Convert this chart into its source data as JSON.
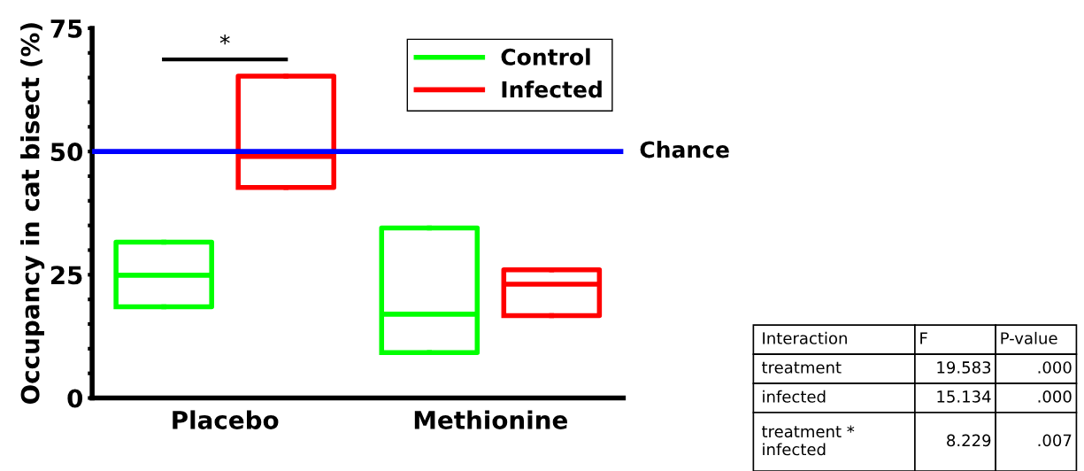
{
  "chart_data": {
    "type": "box",
    "ylabel": "Occupancy in cat bisect (%)",
    "categories": [
      "Placebo",
      "Methionine"
    ],
    "series": [
      {
        "name": "Control",
        "color": "#00ff00",
        "boxes": [
          {
            "low": 18.5,
            "q1": 18.5,
            "median": 24.9,
            "q3": 31.6,
            "high": 31.6
          },
          {
            "low": 9.2,
            "q1": 9.2,
            "median": 17.0,
            "q3": 34.5,
            "high": 34.5
          }
        ]
      },
      {
        "name": "Infected",
        "color": "#ff0000",
        "boxes": [
          {
            "low": 42.7,
            "q1": 42.7,
            "median": 49.0,
            "q3": 65.3,
            "high": 65.3
          },
          {
            "low": 16.7,
            "q1": 16.7,
            "median": 23.1,
            "q3": 26.0,
            "high": 26.0
          }
        ]
      }
    ],
    "ylim": [
      0,
      75
    ],
    "yticks": [
      0,
      {
        "value": 5,
        "label": null
      },
      {
        "value": 10,
        "label": null
      },
      {
        "value": 15,
        "label": null
      },
      {
        "value": 20,
        "label": null
      },
      25,
      {
        "value": 30,
        "label": null
      },
      {
        "value": 35,
        "label": null
      },
      {
        "value": 40,
        "label": null
      },
      {
        "value": 45,
        "label": null
      },
      50,
      {
        "value": 55,
        "label": null
      },
      {
        "value": 60,
        "label": null
      },
      {
        "value": 65,
        "label": null
      },
      {
        "value": 70,
        "label": null
      },
      75
    ],
    "ref_lines": [
      {
        "axis": "y",
        "value": 50,
        "label": "Chance",
        "color": "#0000ff"
      }
    ],
    "annotations": [
      "*",
      "Interaction",
      "F",
      "P-value",
      "treatment",
      "19.583",
      ".000",
      "infected",
      "15.134",
      ".000",
      "treatment * infected",
      "8.229",
      ".007"
    ],
    "legend": "top right",
    "grid": false
  }
}
